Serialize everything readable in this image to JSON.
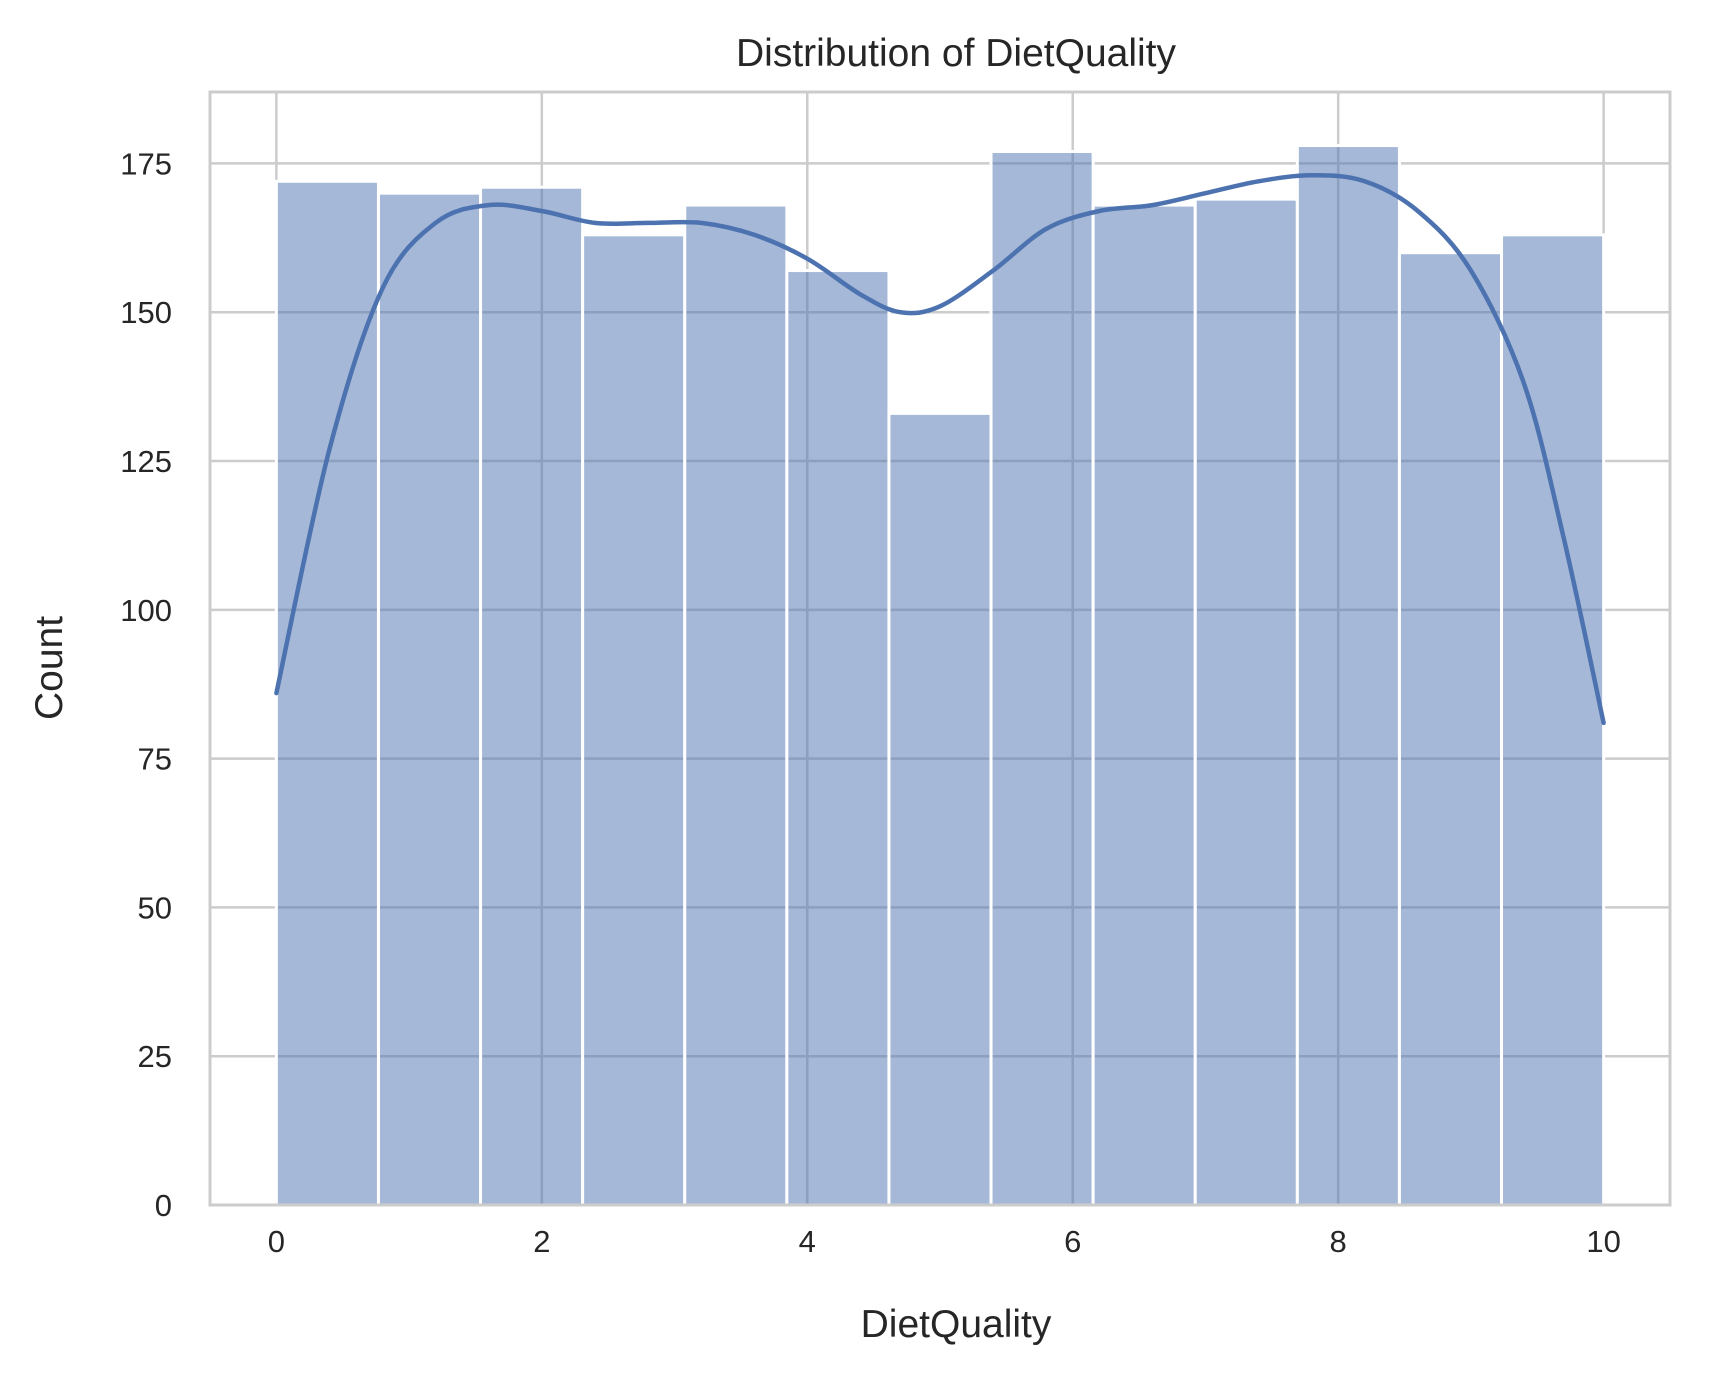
{
  "chart_data": {
    "type": "bar",
    "title": "Distribution of DietQuality",
    "xlabel": "DietQuality",
    "ylabel": "Count",
    "xlim": [
      -0.5,
      10.5
    ],
    "ylim": [
      0,
      187
    ],
    "xticks": [
      0,
      2,
      4,
      6,
      8,
      10
    ],
    "yticks": [
      0,
      25,
      50,
      75,
      100,
      125,
      150,
      175
    ],
    "grid": true,
    "bins": {
      "edges": [
        0,
        0.7692,
        1.5385,
        2.3077,
        3.0769,
        3.8462,
        4.6154,
        5.3846,
        6.1538,
        6.9231,
        7.6923,
        8.4615,
        9.2308,
        10
      ],
      "counts": [
        172,
        170,
        171,
        163,
        168,
        157,
        133,
        177,
        168,
        169,
        178,
        160,
        163
      ]
    },
    "kde": {
      "x": [
        0,
        0.4,
        0.8,
        1.2,
        1.6,
        2.0,
        2.4,
        2.8,
        3.2,
        3.6,
        4.0,
        4.4,
        4.7,
        5.0,
        5.4,
        5.8,
        6.2,
        6.6,
        7.0,
        7.4,
        7.8,
        8.2,
        8.6,
        9.0,
        9.4,
        9.7,
        10
      ],
      "y": [
        86,
        127,
        154,
        165,
        168,
        167,
        165,
        165,
        165,
        163,
        159,
        153,
        150,
        151,
        157,
        164,
        167,
        168,
        170,
        172,
        173,
        172,
        167,
        157,
        138,
        112,
        81
      ]
    },
    "colors": {
      "bar_fill": "#4c72b0",
      "bar_opacity": 0.5,
      "kde_line": "#4c72b0",
      "grid": "#cccccc",
      "spine": "#cccccc"
    }
  }
}
